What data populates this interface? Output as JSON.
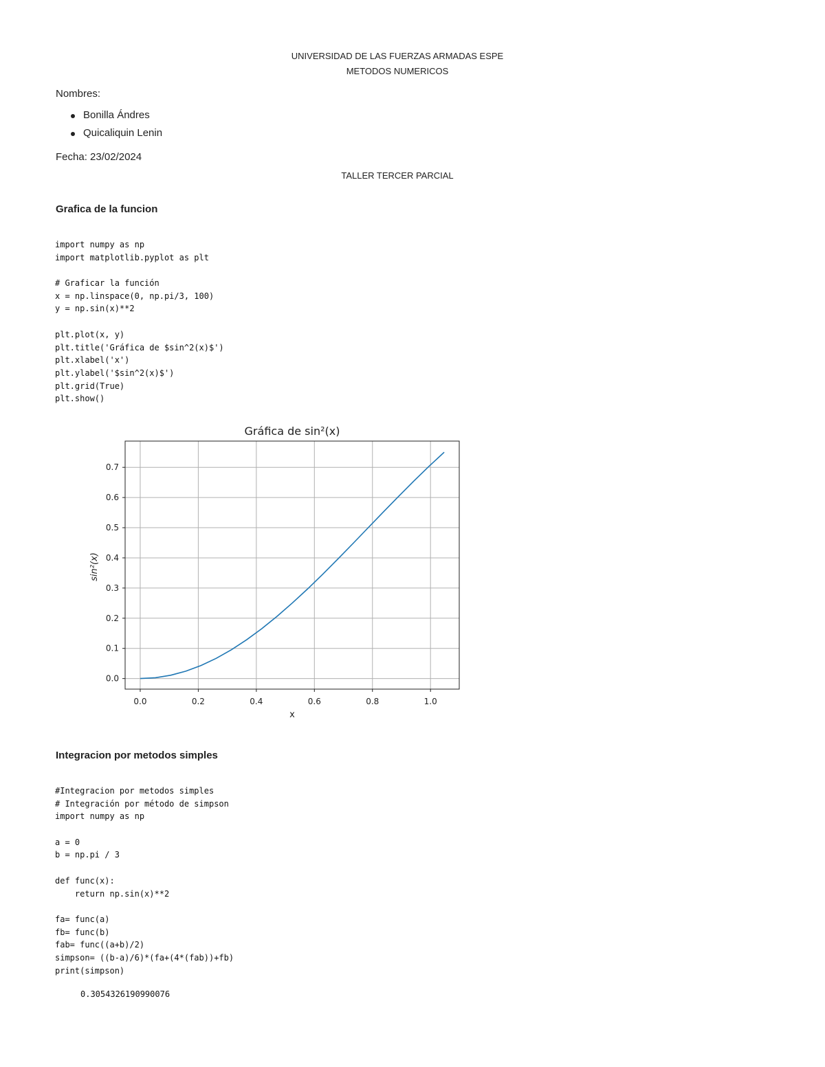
{
  "header": {
    "university": "UNIVERSIDAD DE LAS FUERZAS ARMADAS ESPE",
    "course": "METODOS NUMERICOS"
  },
  "names_label": "Nombres:",
  "names": [
    "Bonilla Ándres",
    "Quicaliquin Lenin"
  ],
  "date_label": "Fecha:",
  "date_value": "23/02/2024",
  "workshop_title": "TALLER TERCER PARCIAL",
  "section1": {
    "heading": "Grafica de la funcion",
    "code": [
      "import numpy as np",
      "import matplotlib.pyplot as plt",
      "",
      "# Graficar la función",
      "x = np.linspace(0, np.pi/3, 100)",
      "y = np.sin(x)**2",
      "",
      "plt.plot(x, y)",
      "plt.title('Gráfica de $sin^2(x)$')",
      "plt.xlabel('x')",
      "plt.ylabel('$sin^2(x)$')",
      "plt.grid(True)",
      "plt.show()"
    ]
  },
  "chart_data": {
    "type": "line",
    "title": "Gráfica de sin²(x)",
    "xlabel": "x",
    "ylabel": "sin²(x)",
    "xlim": [
      -0.052,
      1.099
    ],
    "ylim": [
      -0.035,
      0.787
    ],
    "xticks": [
      "0.0",
      "0.2",
      "0.4",
      "0.6",
      "0.8",
      "1.0"
    ],
    "yticks": [
      "0.0",
      "0.1",
      "0.2",
      "0.3",
      "0.4",
      "0.5",
      "0.6",
      "0.7"
    ],
    "grid": true,
    "color": "#1f77b4",
    "x": [
      0,
      0.05236,
      0.10472,
      0.15708,
      0.20944,
      0.2618,
      0.31416,
      0.36652,
      0.41888,
      0.47124,
      0.5236,
      0.57596,
      0.62832,
      0.68068,
      0.73304,
      0.7854,
      0.83776,
      0.89012,
      0.94248,
      0.99484,
      1.0472
    ],
    "y": [
      0,
      0.00274,
      0.01093,
      0.02447,
      0.04323,
      0.06699,
      0.09549,
      0.12843,
      0.16543,
      0.20611,
      0.25,
      0.29663,
      0.34549,
      0.39604,
      0.44774,
      0.5,
      0.55226,
      0.60396,
      0.65451,
      0.70337,
      0.75
    ]
  },
  "section2": {
    "heading": "Integracion por metodos simples",
    "code": [
      "#Integracion por metodos simples",
      "# Integración por método de simpson",
      "import numpy as np",
      "",
      "a = 0",
      "b = np.pi / 3",
      "",
      "def func(x):",
      "    return np.sin(x)**2",
      "",
      "fa= func(a)",
      "fb= func(b)",
      "fab= func((a+b)/2)",
      "simpson= ((b-a)/6)*(fa+(4*(fab))+fb)",
      "print(simpson)"
    ],
    "output": "0.3054326190990076"
  }
}
